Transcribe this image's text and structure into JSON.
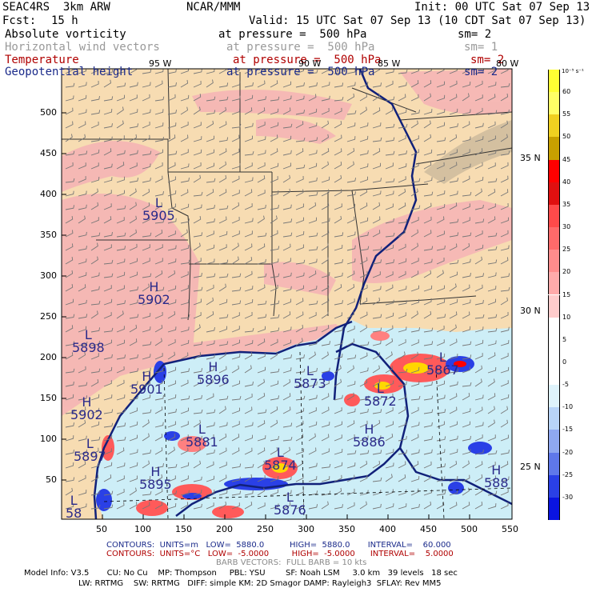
{
  "header": {
    "model_name": "SEAC4RS  3km ARW",
    "center": "NCAR/MMM",
    "init": "Init: 00 UTC Sat 07 Sep 13",
    "fcst_label": "Fcst:",
    "fcst_value": "15 h",
    "valid": "Valid: 15 UTC Sat 07 Sep 13 (10 CDT Sat 07 Sep 13)"
  },
  "fields": [
    {
      "name": "Absolute vorticity",
      "level": "at pressure =  500 hPa",
      "sm": "sm= 2",
      "color": "#000000"
    },
    {
      "name": "Horizontal wind vectors",
      "level": "at pressure =  500 hPa",
      "sm": "sm= 1",
      "color": "#9a9a9a"
    },
    {
      "name": "Temperature",
      "level": "at pressure =  500 hPa",
      "sm": "sm= 2",
      "color": "#b00000"
    },
    {
      "name": "Geopotential height",
      "level": "at pressure =  500 hPa",
      "sm": "sm= 2",
      "color": "#1a2a8a"
    }
  ],
  "map": {
    "x_ticks": [
      "50",
      "100",
      "150",
      "200",
      "250",
      "300",
      "350",
      "400",
      "450",
      "500",
      "550"
    ],
    "y_ticks": [
      "500",
      "450",
      "400",
      "350",
      "300",
      "250",
      "200",
      "150",
      "100",
      "50"
    ],
    "lon_labels": [
      "95 W",
      "90 W",
      "85 W",
      "80 W"
    ],
    "lat_labels": [
      "35 N",
      "30 N",
      "25 N"
    ],
    "colors": {
      "land_fill": "#f7dcb2",
      "pink_fill": "#f5b5b5",
      "sea_fill": "#cdeef7",
      "coast": "#11217a",
      "border": "#333333"
    },
    "height_labels": [
      {
        "kind": "L",
        "value": "5905"
      },
      {
        "kind": "H",
        "value": "5902"
      },
      {
        "kind": "L",
        "value": "5898"
      },
      {
        "kind": "H",
        "value": "5896"
      },
      {
        "kind": "H",
        "value": "5901"
      },
      {
        "kind": "H",
        "value": "5902"
      },
      {
        "kind": "L",
        "value": "5897"
      },
      {
        "kind": "H",
        "value": "5895"
      },
      {
        "kind": "L",
        "value": "5873"
      },
      {
        "kind": "L",
        "value": "5872"
      },
      {
        "kind": "L",
        "value": "5867"
      },
      {
        "kind": "H",
        "value": "5886"
      },
      {
        "kind": "L",
        "value": "5881"
      },
      {
        "kind": "L",
        "value": "5874"
      },
      {
        "kind": "L",
        "value": "5876"
      },
      {
        "kind": "H",
        "value": "588"
      },
      {
        "kind": "L",
        "value": "58"
      }
    ]
  },
  "colorbar": {
    "units": "10⁻⁵ s⁻¹",
    "labels": [
      "60",
      "55",
      "50",
      "45",
      "40",
      "35",
      "30",
      "25",
      "20",
      "15",
      "10",
      "5",
      "0",
      "-5",
      "-10",
      "-15",
      "-20",
      "-25",
      "-30"
    ],
    "colors": [
      "#ffff33",
      "#ffff66",
      "#f0d020",
      "#c8a000",
      "#ff0000",
      "#e01010",
      "#ff4a4a",
      "#ff6a6a",
      "#ff8c8c",
      "#ffaaaa",
      "#ffcccc",
      "#ffffff",
      "#ffffff",
      "#ffffff",
      "#dff3fb",
      "#b8d4f8",
      "#8fa8f0",
      "#5f78ea",
      "#2a40e6",
      "#0a14e0"
    ]
  },
  "footer": {
    "contours_h": "CONTOURS:  UNITS=m   LOW=  5880.0          HIGH=  5880.0       INTERVAL=    60.000",
    "contours_t": "CONTOURS:  UNITS=°C   LOW=  -5.0000         HIGH=  -5.0000      INTERVAL=    5.0000",
    "barbs": "BARB VECTORS:  FULL BARB = 10 kts",
    "model_info_1": "Model Info: V3.5       CU: No Cu    MP: Thompson     PBL: YSU        SF: Noah LSM     3.0 km   39 levels   18 sec",
    "model_info_2": "LW: RRTMG    SW: RRTMG   DIFF: simple KM: 2D Smagor DAMP: Rayleigh3  SFLAY: Rev MM5"
  }
}
